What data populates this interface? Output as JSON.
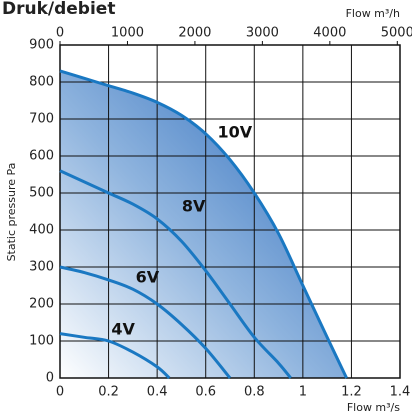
{
  "chart_data": {
    "type": "line",
    "title": "Druk/debiet",
    "ylabel": "Static pressure Pa",
    "xlabel": "Flow m³/s",
    "x2label": "Flow m³/h",
    "xlim": [
      0,
      1.4
    ],
    "xticks": [
      0,
      0.2,
      0.4,
      0.6,
      0.8,
      1.0,
      1.2,
      1.4
    ],
    "x2lim": [
      0,
      5040
    ],
    "x2ticks": [
      0,
      1000,
      2000,
      3000,
      4000,
      5000
    ],
    "ylim": [
      0,
      900
    ],
    "yticks": [
      0,
      100,
      200,
      300,
      400,
      500,
      600,
      700,
      800,
      900
    ],
    "grid": true,
    "series": [
      {
        "name": "10V",
        "color": "#1a78c2",
        "x": [
          0,
          0.1,
          0.2,
          0.3,
          0.4,
          0.5,
          0.6,
          0.7,
          0.8,
          0.9,
          1.0,
          1.1,
          1.18
        ],
        "values": [
          830,
          810,
          790,
          770,
          745,
          710,
          660,
          590,
          500,
          390,
          250,
          110,
          0
        ]
      },
      {
        "name": "8V",
        "color": "#1a78c2",
        "x": [
          0,
          0.1,
          0.2,
          0.3,
          0.4,
          0.5,
          0.6,
          0.7,
          0.8,
          0.9,
          0.95
        ],
        "values": [
          560,
          530,
          500,
          470,
          430,
          370,
          290,
          200,
          110,
          40,
          0
        ]
      },
      {
        "name": "6V",
        "color": "#1a78c2",
        "x": [
          0,
          0.1,
          0.2,
          0.3,
          0.4,
          0.5,
          0.6,
          0.7
        ],
        "values": [
          300,
          285,
          265,
          240,
          200,
          145,
          80,
          0
        ]
      },
      {
        "name": "4V",
        "color": "#1a78c2",
        "x": [
          0,
          0.1,
          0.2,
          0.3,
          0.4,
          0.45
        ],
        "values": [
          120,
          110,
          100,
          70,
          30,
          0
        ]
      }
    ]
  }
}
